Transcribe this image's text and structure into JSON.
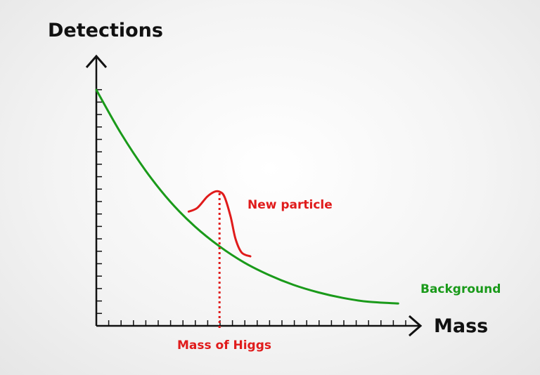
{
  "chart_data": {
    "type": "line",
    "title": "",
    "xlabel": "Mass",
    "ylabel": "Detections",
    "grid": false,
    "legend": "none",
    "xlim": [
      0,
      25
    ],
    "ylim": [
      0,
      19
    ],
    "series": [
      {
        "name": "Background",
        "color": "#1a9a1a",
        "x": [
          0,
          2,
          4,
          6,
          8,
          10,
          12,
          14,
          16,
          18,
          20,
          22,
          24.5
        ],
        "y": [
          19.0,
          15.5,
          12.5,
          10.0,
          8.0,
          6.4,
          5.1,
          4.1,
          3.3,
          2.7,
          2.25,
          1.95,
          1.8
        ]
      },
      {
        "name": "New particle",
        "color": "#e01b1b",
        "x": [
          7.5,
          8.2,
          9.0,
          9.6,
          10.0,
          10.4,
          10.9,
          11.3,
          11.8,
          12.5
        ],
        "y": [
          9.2,
          9.5,
          10.4,
          10.8,
          10.8,
          10.4,
          8.8,
          7.0,
          5.9,
          5.6
        ]
      }
    ],
    "annotations": {
      "higgs_label": "Mass of Higgs",
      "higgs_x": 10.0,
      "particle_label": "New particle",
      "background_label": "Background"
    },
    "ticks": {
      "x_count": 25,
      "y_count": 19,
      "show_numbers": false
    }
  },
  "colors": {
    "axis": "#111111",
    "background_curve": "#1a9a1a",
    "signal_curve": "#e01b1b",
    "marker_line": "#e01b1b"
  }
}
